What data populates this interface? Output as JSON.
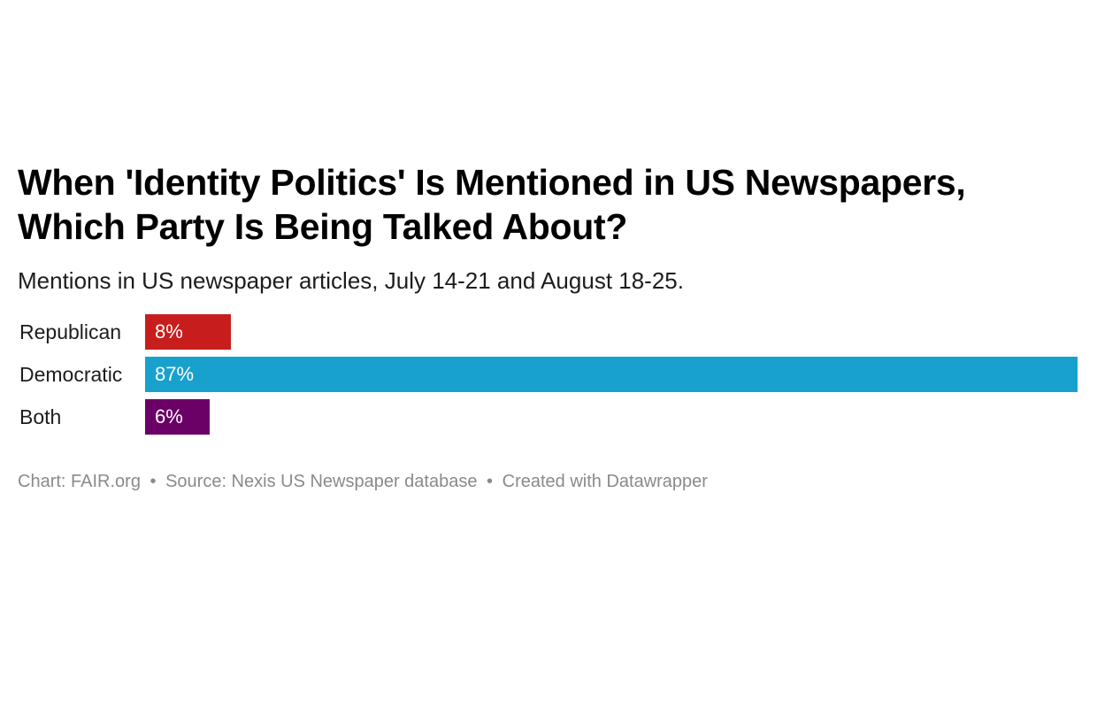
{
  "chart_data": {
    "type": "bar",
    "orientation": "horizontal",
    "title": "When 'Identity Politics' Is Mentioned in US Newspapers, Which Party Is Being Talked About?",
    "subtitle": "Mentions in US newspaper articles, July 14-21 and August 18-25.",
    "categories": [
      "Republican",
      "Democratic",
      "Both"
    ],
    "values": [
      8,
      87,
      6
    ],
    "value_labels": [
      "8%",
      "87%",
      "6%"
    ],
    "unit": "%",
    "colors": [
      "#c71e1d",
      "#18a1cd",
      "#6b0066"
    ],
    "xlim": [
      0,
      87
    ],
    "grid": false,
    "legend": "none"
  },
  "footer": {
    "chart_credit": "Chart: FAIR.org",
    "source": "Source: Nexis US Newspaper database",
    "created_with": "Created with Datawrapper",
    "separator": "•"
  }
}
